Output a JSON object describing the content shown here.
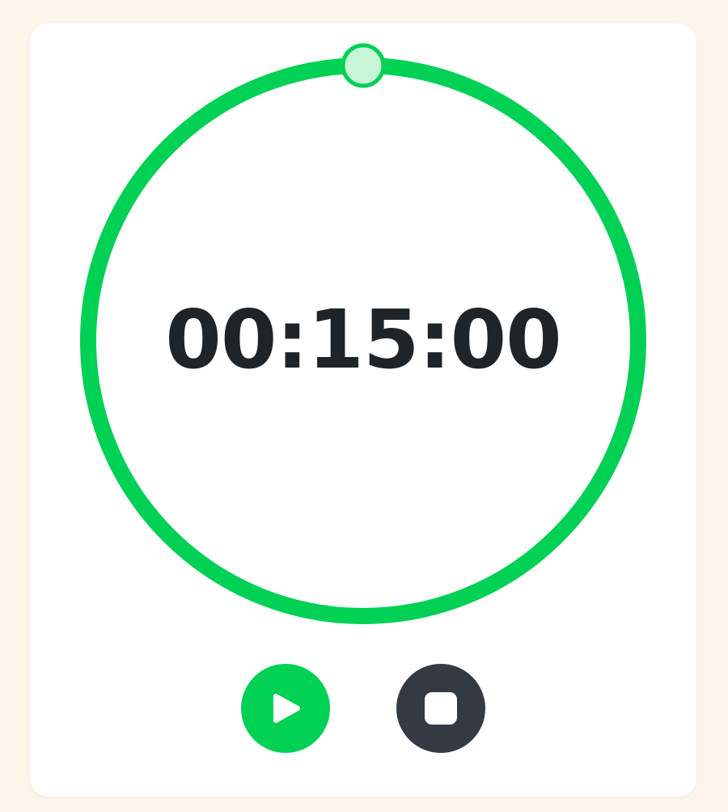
{
  "timer": {
    "display": "00:15:00",
    "progress": 1.0
  },
  "controls": {
    "play_icon": "play-icon",
    "stop_icon": "stop-icon"
  },
  "colors": {
    "background": "#fdf5ea",
    "card": "#ffffff",
    "ring": "#00d155",
    "knob_fill": "#c8f5d6",
    "time_text": "#1f2429",
    "play_button": "#00d155",
    "stop_button": "#343a42",
    "icon": "#ffffff"
  }
}
